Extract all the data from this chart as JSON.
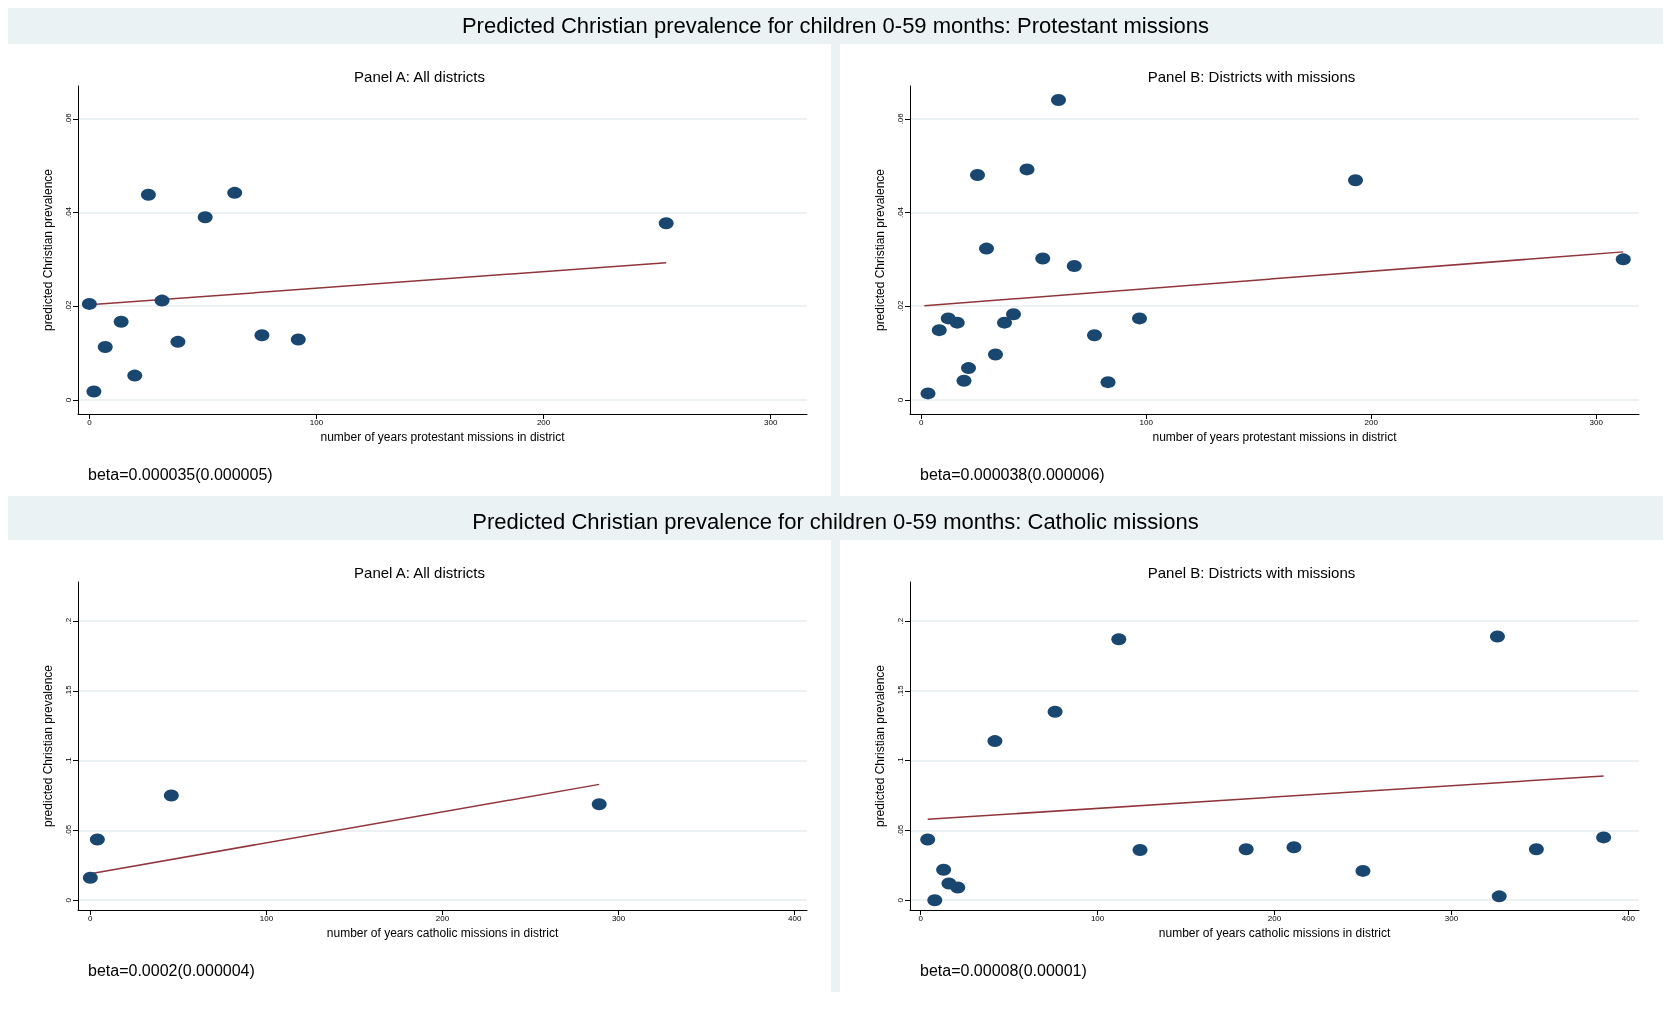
{
  "chart_data": [
    {
      "type": "scatter",
      "subtitle": "Predicted Christian prevalence for children 0-59 months: Protestant missions",
      "title": "Panel A: All districts",
      "xlabel": "number of years protestant missions in district",
      "ylabel": "predicted Christian prevalence",
      "annotations": [
        "beta=0.000035(0.000005)"
      ],
      "xlim": [
        -5,
        316
      ],
      "ylim": [
        -0.003,
        0.067
      ],
      "xticks": [
        0,
        100,
        200,
        300
      ],
      "yticks": [
        {
          "value": 0,
          "label": "0"
        },
        {
          "value": 0.02,
          "label": ".02"
        },
        {
          "value": 0.04,
          "label": ".04"
        },
        {
          "value": 0.06,
          "label": ".06"
        }
      ],
      "grid": "y",
      "series": [
        {
          "type": "scatter",
          "marker": "circle",
          "color": "#1a476f",
          "x": [
            0,
            2,
            7,
            14,
            20,
            26,
            32,
            39,
            51,
            64,
            76,
            92,
            254
          ],
          "values": [
            0.0205,
            0.0018,
            0.0113,
            0.0167,
            0.0052,
            0.0438,
            0.0212,
            0.0124,
            0.039,
            0.0442,
            0.0138,
            0.0129,
            0.0377
          ]
        },
        {
          "type": "line",
          "color": "#90353b",
          "x": [
            0,
            254
          ],
          "values": [
            0.0203,
            0.0293
          ]
        }
      ]
    },
    {
      "type": "scatter",
      "title": "Panel B: Districts with missions",
      "xlabel": "number of years protestant missions in district",
      "ylabel": "predicted Christian prevalence",
      "annotations": [
        "beta=0.000038(0.000006)"
      ],
      "xlim": [
        -5,
        319
      ],
      "ylim": [
        -0.003,
        0.067
      ],
      "xticks": [
        0,
        100,
        200,
        300
      ],
      "yticks": [
        {
          "value": 0,
          "label": "0"
        },
        {
          "value": 0.02,
          "label": ".02"
        },
        {
          "value": 0.04,
          "label": ".04"
        },
        {
          "value": 0.06,
          "label": ".06"
        }
      ],
      "grid": "y",
      "series": [
        {
          "type": "scatter",
          "marker": "circle",
          "color": "#1a476f",
          "x": [
            3,
            8,
            12,
            16,
            19,
            21,
            25,
            29,
            33,
            37,
            41,
            47,
            54,
            61,
            68,
            77,
            83,
            97,
            193,
            312
          ],
          "values": [
            0.0014,
            0.0149,
            0.0174,
            0.0165,
            0.0041,
            0.0068,
            0.048,
            0.0323,
            0.0097,
            0.0165,
            0.0183,
            0.0492,
            0.0302,
            0.064,
            0.0286,
            0.0138,
            0.0038,
            0.0174,
            0.0469,
            0.03
          ]
        },
        {
          "type": "line",
          "color": "#90353b",
          "x": [
            1.4,
            312
          ],
          "values": [
            0.0201,
            0.0316
          ]
        }
      ]
    },
    {
      "type": "scatter",
      "subtitle": "Predicted Christian prevalence for children 0-59 months: Catholic missions",
      "title": "Panel A: All districts",
      "xlabel": "number of years catholic missions in district",
      "ylabel": "predicted Christian prevalence",
      "annotations": [
        "beta=0.0002(0.000004)"
      ],
      "xlim": [
        -7,
        407
      ],
      "ylim": [
        -0.007,
        0.228
      ],
      "xticks": [
        0,
        100,
        200,
        300,
        400
      ],
      "yticks": [
        {
          "value": 0,
          "label": "0"
        },
        {
          "value": 0.05,
          "label": ".05"
        },
        {
          "value": 0.1,
          "label": ".1"
        },
        {
          "value": 0.15,
          "label": ".15"
        },
        {
          "value": 0.2,
          "label": ".2"
        }
      ],
      "grid": "y",
      "series": [
        {
          "type": "scatter",
          "marker": "circle",
          "color": "#1a476f",
          "x": [
            0,
            4,
            46,
            289
          ],
          "values": [
            0.0161,
            0.0435,
            0.075,
            0.0688
          ]
        },
        {
          "type": "line",
          "color": "#90353b",
          "x": [
            0,
            289
          ],
          "values": [
            0.019,
            0.083
          ]
        }
      ]
    },
    {
      "type": "scatter",
      "title": "Panel B: Districts with missions",
      "xlabel": "number of years catholic missions in district",
      "ylabel": "predicted Christian prevalence",
      "annotations": [
        "beta=0.00008(0.00001)"
      ],
      "xlim": [
        -6,
        406
      ],
      "ylim": [
        -0.007,
        0.228
      ],
      "xticks": [
        0,
        100,
        200,
        300,
        400
      ],
      "yticks": [
        {
          "value": 0,
          "label": "0"
        },
        {
          "value": 0.05,
          "label": ".05"
        },
        {
          "value": 0.1,
          "label": ".1"
        },
        {
          "value": 0.15,
          "label": ".15"
        },
        {
          "value": 0.2,
          "label": ".2"
        }
      ],
      "grid": "y",
      "series": [
        {
          "type": "scatter",
          "marker": "circle",
          "color": "#1a476f",
          "x": [
            4,
            8,
            13,
            16,
            21,
            42,
            76,
            112,
            124,
            184,
            211,
            250,
            326,
            327,
            348,
            386
          ],
          "values": [
            0.0435,
            0,
            0.0218,
            0.012,
            0.0091,
            0.114,
            0.135,
            0.187,
            0.036,
            0.0365,
            0.038,
            0.021,
            0.189,
            0.0028,
            0.0365,
            0.045
          ]
        },
        {
          "type": "line",
          "color": "#90353b",
          "x": [
            4,
            386
          ],
          "values": [
            0.058,
            0.089
          ]
        }
      ]
    }
  ]
}
